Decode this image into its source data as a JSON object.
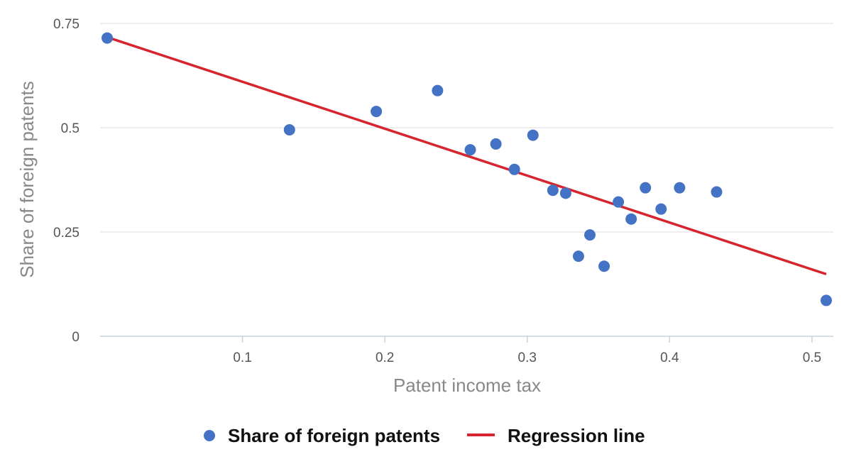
{
  "chart_data": {
    "type": "scatter",
    "xlabel": "Patent income tax",
    "ylabel": "Share of foreign patents",
    "xlim": [
      0.0,
      0.515
    ],
    "ylim": [
      0,
      0.75
    ],
    "x_ticks": [
      0.1,
      0.2,
      0.3,
      0.4,
      0.5
    ],
    "x_tick_labels": [
      "0.1",
      "0.2",
      "0.3",
      "0.4",
      "0.5"
    ],
    "y_ticks": [
      0,
      0.25,
      0.5,
      0.75
    ],
    "y_tick_labels": [
      "0",
      "0.25",
      "0.5",
      "0.75"
    ],
    "grid": "horizontal",
    "legend_position": "bottom",
    "series": [
      {
        "name": "Share of foreign patents",
        "kind": "points",
        "color": "#4472C4",
        "points": [
          [
            0.005,
            0.715
          ],
          [
            0.133,
            0.495
          ],
          [
            0.194,
            0.539
          ],
          [
            0.237,
            0.589
          ],
          [
            0.26,
            0.447
          ],
          [
            0.278,
            0.461
          ],
          [
            0.291,
            0.4
          ],
          [
            0.304,
            0.482
          ],
          [
            0.318,
            0.35
          ],
          [
            0.327,
            0.343
          ],
          [
            0.336,
            0.192
          ],
          [
            0.344,
            0.243
          ],
          [
            0.354,
            0.168
          ],
          [
            0.364,
            0.322
          ],
          [
            0.373,
            0.281
          ],
          [
            0.383,
            0.356
          ],
          [
            0.394,
            0.305
          ],
          [
            0.407,
            0.356
          ],
          [
            0.433,
            0.346
          ],
          [
            0.51,
            0.086
          ]
        ]
      },
      {
        "name": "Regression line",
        "kind": "line",
        "color": "#D6252E",
        "points": [
          [
            0.005,
            0.717
          ],
          [
            0.51,
            0.149
          ]
        ]
      }
    ]
  }
}
